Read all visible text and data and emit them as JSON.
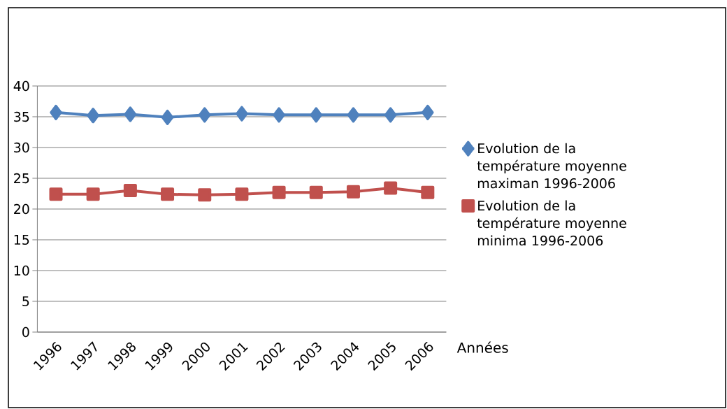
{
  "chart_data": {
    "type": "line",
    "xlabel": "Années",
    "categories": [
      "1996",
      "1997",
      "1998",
      "1999",
      "2000",
      "2001",
      "2002",
      "2003",
      "2004",
      "2005",
      "2006"
    ],
    "series": [
      {
        "name": "Evolution de la température moyenne maximan 1996-2006",
        "color": "#4f81bd",
        "marker": "diamond",
        "values": [
          35.7,
          35.2,
          35.4,
          34.9,
          35.3,
          35.5,
          35.3,
          35.3,
          35.3,
          35.3,
          35.7
        ]
      },
      {
        "name": "Evolution de la température moyenne minima 1996-2006",
        "color": "#c0504d",
        "marker": "square",
        "values": [
          22.4,
          22.4,
          23.0,
          22.4,
          22.3,
          22.4,
          22.7,
          22.7,
          22.8,
          23.4,
          22.7
        ]
      }
    ],
    "ylim": [
      0,
      40
    ],
    "yticks": [
      0,
      5,
      10,
      15,
      20,
      25,
      30,
      35,
      40
    ],
    "grid": "y",
    "legend": "right"
  }
}
